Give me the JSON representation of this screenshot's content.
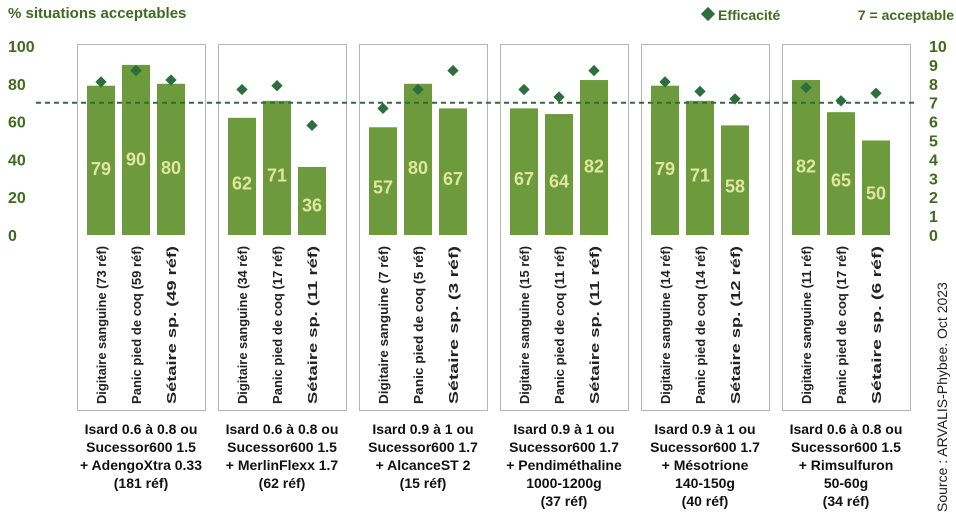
{
  "chart_data": {
    "type": "bar",
    "title": "% situations acceptables",
    "legend": {
      "marker_label": "Efficacité",
      "threshold_label": "7 = acceptable",
      "placement": "top-right"
    },
    "source": "Source : ARVALIS-Phybee. Oct 2023",
    "y_left": {
      "ylim": [
        0,
        100
      ],
      "ticks": [
        "0",
        "20",
        "40",
        "60",
        "80",
        "100"
      ]
    },
    "y_right": {
      "ylim": [
        0,
        10
      ],
      "ticks": [
        "0",
        "1",
        "2",
        "3",
        "4",
        "5",
        "6",
        "7",
        "8",
        "9",
        "10"
      ]
    },
    "threshold": 7,
    "colors": {
      "bar": "#6e9a3e",
      "bar_label": "#dfe6a0",
      "marker": "#2c6e3c",
      "axis_text": "#3f6b1f",
      "threshold": "#2c6e3c"
    },
    "groups": [
      {
        "label_lines": [
          "Isard 0.6 à 0.8 ou",
          "Sucessor600 1.5",
          "+ AdengoXtra 0.33",
          "(181 réf)"
        ],
        "bars": [
          {
            "label": "Digitaire sanguine (73 réf)",
            "value": 79,
            "efficacite": 8.1
          },
          {
            "label": "Panic pied de coq (59 réf)",
            "value": 90,
            "efficacite": 8.7
          },
          {
            "label": "Sétaire sp. (49 réf)",
            "value": 80,
            "efficacite": 8.2
          }
        ]
      },
      {
        "label_lines": [
          "Isard 0.6 à 0.8 ou",
          "Sucessor600 1.5",
          "+ MerlinFlexx 1.7",
          "(62 réf)"
        ],
        "bars": [
          {
            "label": "Digitaire sanguine (34 réf)",
            "value": 62,
            "efficacite": 7.7
          },
          {
            "label": "Panic pied de coq (17 réf)",
            "value": 71,
            "efficacite": 7.9
          },
          {
            "label": "Sétaire sp. (11 réf)",
            "value": 36,
            "efficacite": 5.8
          }
        ]
      },
      {
        "label_lines": [
          "Isard 0.9 à 1 ou",
          "Sucessor600 1.7",
          "+ AlcanceST 2",
          "(15 réf)"
        ],
        "bars": [
          {
            "label": "Digitaire sanguine (7 réf)",
            "value": 57,
            "efficacite": 6.7
          },
          {
            "label": "Panic pied de coq (5 réf)",
            "value": 80,
            "efficacite": 7.7
          },
          {
            "label": "Sétaire sp. (3 réf)",
            "value": 67,
            "efficacite": 8.7
          }
        ]
      },
      {
        "label_lines": [
          "Isard 0.9 à 1 ou",
          "Sucessor600 1.7",
          "+ Pendiméthaline",
          "1000-1200g",
          "(37 réf)"
        ],
        "bars": [
          {
            "label": "Digitaire sanguine (15 réf)",
            "value": 67,
            "efficacite": 7.7
          },
          {
            "label": "Panic pied de coq (11 réf)",
            "value": 64,
            "efficacite": 7.3
          },
          {
            "label": "Sétaire sp. (11 réf)",
            "value": 82,
            "efficacite": 8.7
          }
        ]
      },
      {
        "label_lines": [
          "Isard 0.9 à 1 ou",
          "Sucessor600 1.7",
          "+ Mésotrione",
          "140-150g",
          "(40 réf)"
        ],
        "bars": [
          {
            "label": "Digitaire sanguine (14 réf)",
            "value": 79,
            "efficacite": 8.1
          },
          {
            "label": "Panic pied de coq (14 réf)",
            "value": 71,
            "efficacite": 7.6
          },
          {
            "label": "Sétaire sp. (12 réf)",
            "value": 58,
            "efficacite": 7.2
          }
        ]
      },
      {
        "label_lines": [
          "Isard 0.6 à 0.8 ou",
          "Sucessor600 1.5",
          "+ Rimsulfuron",
          "50-60g",
          "(34 réf)"
        ],
        "bars": [
          {
            "label": "Digitaire sanguine (11 réf)",
            "value": 82,
            "efficacite": 7.8
          },
          {
            "label": "Panic pied de coq (17 réf)",
            "value": 65,
            "efficacite": 7.1
          },
          {
            "label": "Sétaire sp. (6 réf)",
            "value": 50,
            "efficacite": 7.5
          }
        ]
      }
    ]
  }
}
